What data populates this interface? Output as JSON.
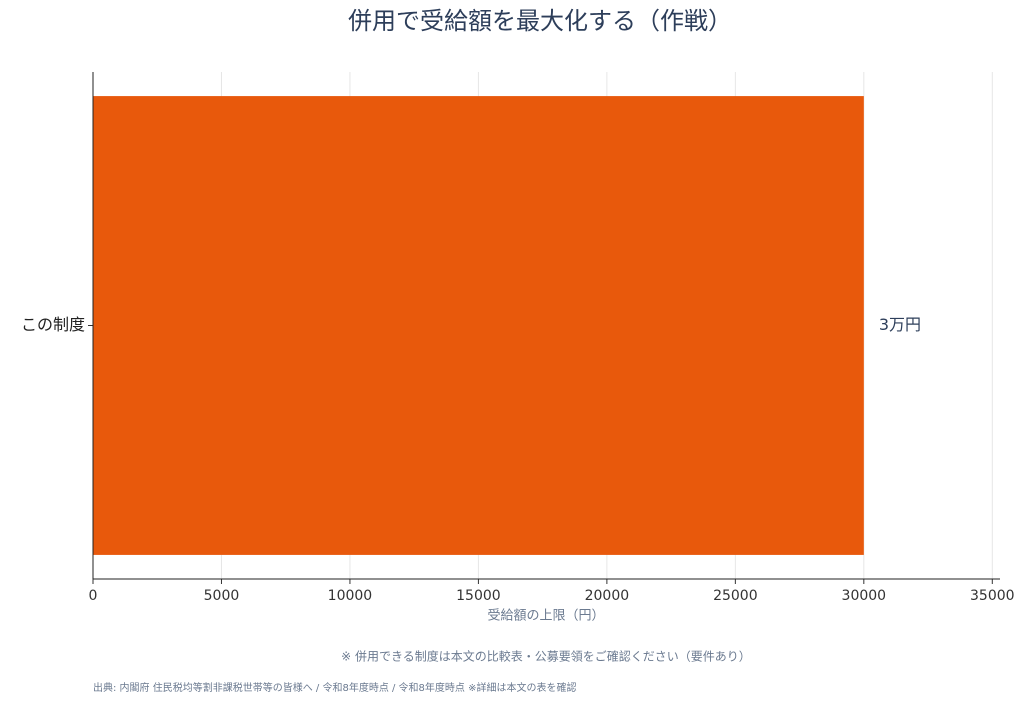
{
  "chart_data": {
    "type": "barh",
    "title": "併用で受給額を最大化する（作戦）",
    "categories": [
      "この制度"
    ],
    "values": [
      30000
    ],
    "value_labels": [
      "3万円"
    ],
    "color": "#e8590c",
    "xlabel": "受給額の上限（円）",
    "xlim": [
      0,
      35300
    ],
    "xticks": [
      0,
      5000,
      10000,
      15000,
      20000,
      25000,
      30000,
      35000
    ],
    "grid": true,
    "note": "※ 併用できる制度は本文の比較表・公募要領をご確認ください（要件あり）",
    "source": "出典: 内閣府 住民税均等割非課税世帯等の皆様へ / 令和8年度時点 / 令和8年度時点 ※詳細は本文の表を確認"
  }
}
